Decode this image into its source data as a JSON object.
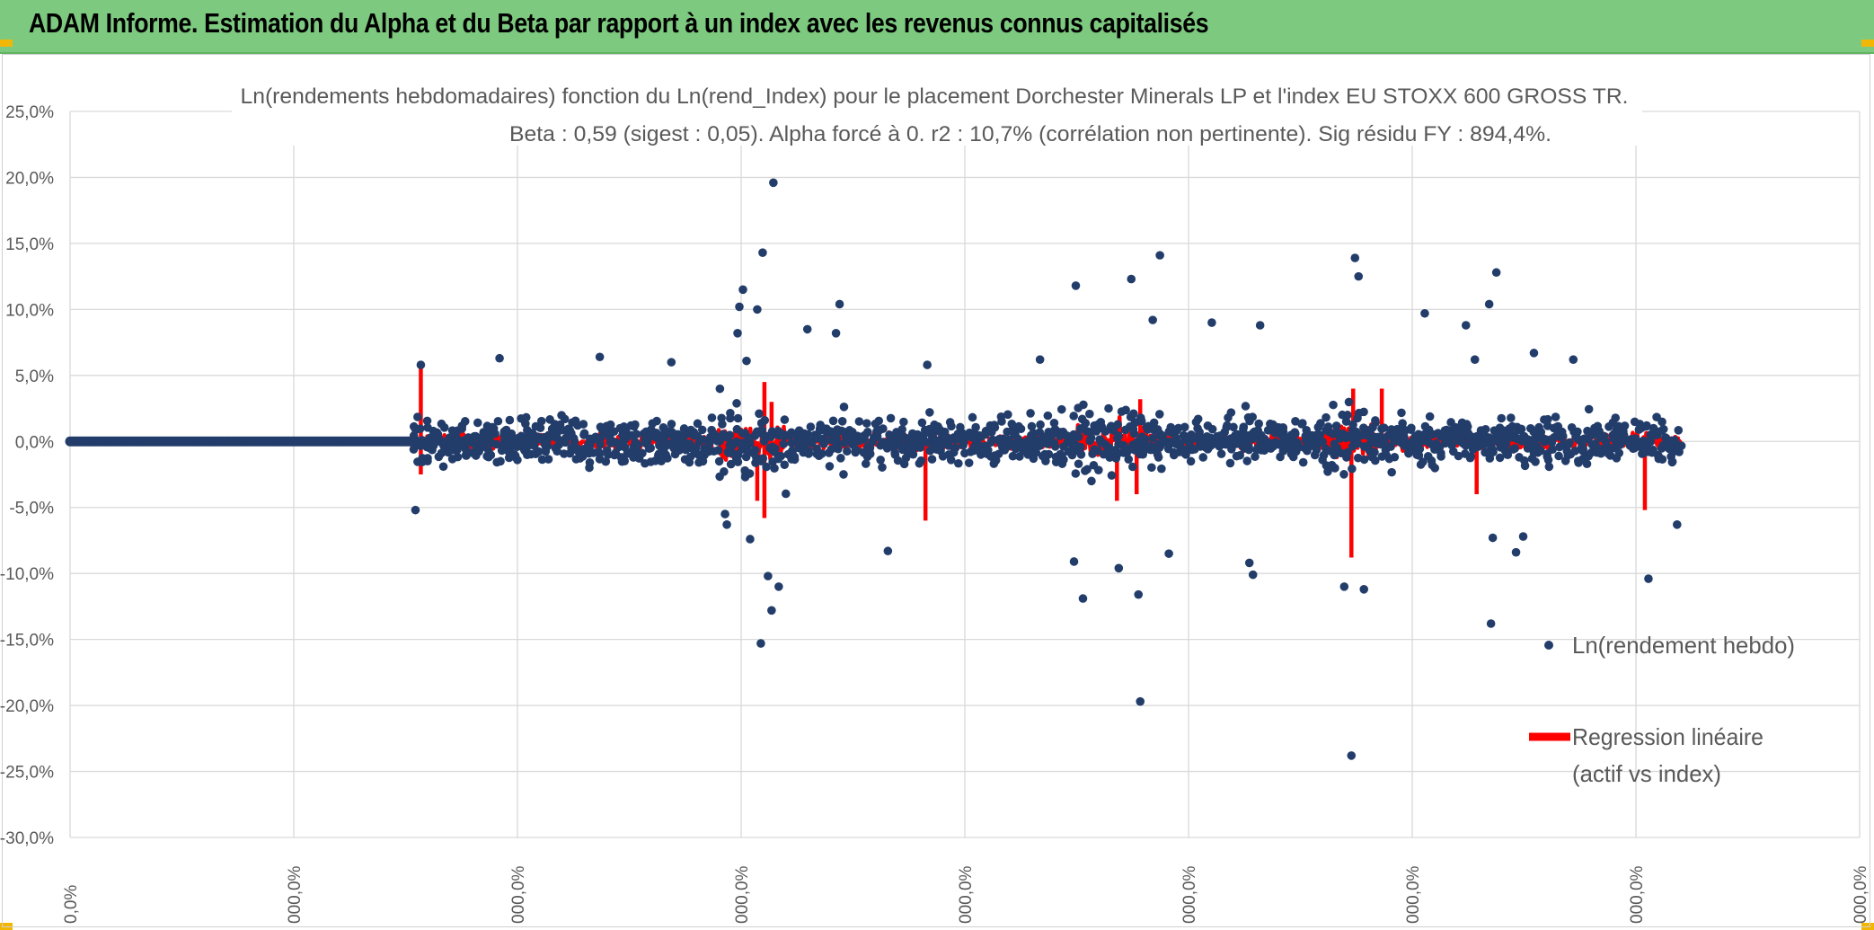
{
  "header": {
    "title": "ADAM Informe. Estimation du Alpha et du Beta par rapport à un index avec les revenus connus capitalisés"
  },
  "colors": {
    "banner": "#7dc97f",
    "points": "#233d6b",
    "regression": "#ff0000",
    "grid": "#d9d9d9",
    "text": "#595959"
  },
  "chart_data": {
    "type": "scatter",
    "title": "Ln(rendements hebdomadaires) fonction du Ln(rend_Index) pour le placement Dorchester Minerals LP et l'index EU STOXX 600 GROSS TR.",
    "subtitle": "Beta : 0,59 (sigest : 0,05). Alpha forcé à 0. r2 : 10,7% (corrélation non pertinente). Sig résidu FY : 894,4%.",
    "ylim": [
      -0.3,
      0.25
    ],
    "y_ticks": [
      0.25,
      0.2,
      0.15,
      0.1,
      0.05,
      0.0,
      -0.05,
      -0.1,
      -0.15,
      -0.2,
      -0.25,
      -0.3
    ],
    "y_tick_labels": [
      "25,0%",
      "20,0%",
      "15,0%",
      "10,0%",
      "5,0%",
      "0,0%",
      "-5,0%",
      "-10,0%",
      "-15,0%",
      "-20,0%",
      "-25,0%",
      "-30,0%"
    ],
    "x_tick_labels": [
      "0,0%",
      "000,0%",
      "000,0%",
      "000,0%",
      "000,0%",
      "000,0%",
      "000,0%",
      "000,0%",
      "000,0%"
    ],
    "legend": [
      {
        "label": "Ln(rendement hebdo)",
        "kind": "marker"
      },
      {
        "label_line1": "Regression linéaire",
        "label_line2": "(actif vs index)",
        "kind": "line"
      }
    ],
    "series": [
      {
        "name": "Ln(rendement hebdo)",
        "data_range_start": 0.192,
        "outliers": [
          [
            0.196,
            0.058
          ],
          [
            0.193,
            -0.052
          ],
          [
            0.24,
            0.063
          ],
          [
            0.296,
            0.064
          ],
          [
            0.336,
            0.06
          ],
          [
            0.366,
            -0.055
          ],
          [
            0.367,
            -0.063
          ],
          [
            0.373,
            0.082
          ],
          [
            0.374,
            0.102
          ],
          [
            0.376,
            0.115
          ],
          [
            0.378,
            0.061
          ],
          [
            0.38,
            -0.074
          ],
          [
            0.384,
            0.1
          ],
          [
            0.387,
            0.143
          ],
          [
            0.39,
            -0.102
          ],
          [
            0.392,
            -0.128
          ],
          [
            0.396,
            -0.11
          ],
          [
            0.393,
            0.196
          ],
          [
            0.386,
            -0.153
          ],
          [
            0.412,
            0.085
          ],
          [
            0.43,
            0.104
          ],
          [
            0.428,
            0.082
          ],
          [
            0.457,
            -0.083
          ],
          [
            0.479,
            0.058
          ],
          [
            0.542,
            0.062
          ],
          [
            0.562,
            0.118
          ],
          [
            0.566,
            -0.119
          ],
          [
            0.561,
            -0.091
          ],
          [
            0.593,
            0.123
          ],
          [
            0.586,
            -0.096
          ],
          [
            0.598,
            -0.197
          ],
          [
            0.597,
            -0.116
          ],
          [
            0.605,
            0.092
          ],
          [
            0.609,
            0.141
          ],
          [
            0.614,
            -0.085
          ],
          [
            0.638,
            0.09
          ],
          [
            0.659,
            -0.092
          ],
          [
            0.661,
            -0.101
          ],
          [
            0.665,
            0.088
          ],
          [
            0.712,
            -0.11
          ],
          [
            0.716,
            -0.238
          ],
          [
            0.718,
            0.139
          ],
          [
            0.72,
            0.125
          ],
          [
            0.723,
            -0.112
          ],
          [
            0.757,
            0.097
          ],
          [
            0.78,
            0.088
          ],
          [
            0.785,
            0.062
          ],
          [
            0.793,
            0.104
          ],
          [
            0.797,
            0.128
          ],
          [
            0.795,
            -0.073
          ],
          [
            0.794,
            -0.138
          ],
          [
            0.808,
            -0.084
          ],
          [
            0.812,
            -0.072
          ],
          [
            0.818,
            0.067
          ],
          [
            0.84,
            0.062
          ],
          [
            0.882,
            -0.104
          ],
          [
            0.898,
            -0.063
          ]
        ]
      },
      {
        "name": "Regression linéaire (actif vs index)",
        "spikes": [
          [
            0.196,
            0.058
          ],
          [
            0.196,
            -0.025
          ],
          [
            0.388,
            0.045
          ],
          [
            0.388,
            -0.058
          ],
          [
            0.384,
            -0.045
          ],
          [
            0.392,
            0.03
          ],
          [
            0.478,
            -0.06
          ],
          [
            0.585,
            -0.045
          ],
          [
            0.598,
            0.032
          ],
          [
            0.596,
            -0.04
          ],
          [
            0.716,
            -0.088
          ],
          [
            0.717,
            0.04
          ],
          [
            0.733,
            0.04
          ],
          [
            0.786,
            -0.04
          ],
          [
            0.88,
            -0.052
          ]
        ]
      }
    ]
  }
}
